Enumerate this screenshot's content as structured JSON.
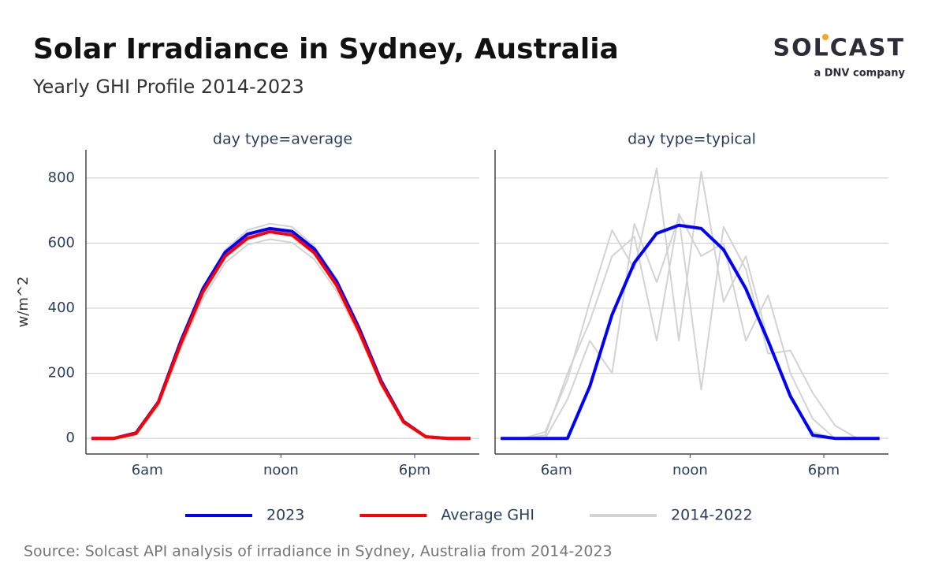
{
  "title": "Solar Irradiance in Sydney, Australia",
  "subtitle": "Yearly GHI Profile 2014-2023",
  "logo": {
    "name": "SOLCAST",
    "tagline": "a DNV company"
  },
  "source": "Source: Solcast API analysis of irradiance in Sydney, Australia from 2014-2023",
  "chart_data": [
    {
      "type": "line",
      "title": "day type=average",
      "y_label": "w/m^2",
      "x": [
        3.5,
        4.5,
        5.5,
        6.5,
        7.5,
        8.5,
        9.5,
        10.5,
        11.5,
        12.5,
        13.5,
        14.5,
        15.5,
        16.5,
        17.5,
        18.5,
        19.5,
        20.5
      ],
      "xlim": [
        3.25,
        20.9
      ],
      "xticks": [
        {
          "value": 6,
          "label": "6am"
        },
        {
          "value": 12,
          "label": "noon"
        },
        {
          "value": 18,
          "label": "6pm"
        }
      ],
      "ylim": [
        -48,
        887
      ],
      "yticks": [
        0,
        200,
        400,
        600,
        800
      ],
      "grid": true,
      "series": [
        {
          "name": "2014-2022",
          "color": "#d3d3d3",
          "width": 2,
          "lines": [
            [
              0,
              0,
              18,
              115,
              300,
              465,
              580,
              640,
              660,
              650,
              590,
              490,
              345,
              180,
              55,
              6,
              0,
              0
            ],
            [
              0,
              0,
              12,
              100,
              275,
              430,
              540,
              595,
              612,
              602,
              550,
              452,
              318,
              162,
              46,
              4,
              0,
              0
            ],
            [
              0,
              0,
              16,
              108,
              288,
              448,
              562,
              622,
              645,
              636,
              578,
              480,
              338,
              175,
              52,
              5,
              0,
              0
            ]
          ]
        },
        {
          "name": "2023",
          "color": "#0000ff",
          "width": 4,
          "values": [
            0,
            0,
            17,
            112,
            298,
            460,
            572,
            628,
            645,
            636,
            582,
            482,
            340,
            176,
            52,
            5,
            0,
            0
          ]
        },
        {
          "name": "Average GHI",
          "color": "#ff0000",
          "width": 4,
          "values": [
            0,
            0,
            15,
            110,
            290,
            450,
            560,
            615,
            635,
            625,
            570,
            470,
            330,
            170,
            50,
            5,
            0,
            0
          ]
        }
      ]
    },
    {
      "type": "line",
      "title": "day type=typical",
      "x": [
        3.5,
        4.5,
        5.5,
        6.5,
        7.5,
        8.5,
        9.5,
        10.5,
        11.5,
        12.5,
        13.5,
        14.5,
        15.5,
        16.5,
        17.5,
        18.5,
        19.5,
        20.5
      ],
      "xlim": [
        3.25,
        20.9
      ],
      "xticks": [
        {
          "value": 6,
          "label": "6am"
        },
        {
          "value": 12,
          "label": "noon"
        },
        {
          "value": 18,
          "label": "6pm"
        }
      ],
      "ylim": [
        -48,
        887
      ],
      "yticks": [
        0,
        200,
        400,
        600,
        800
      ],
      "grid": true,
      "series": [
        {
          "name": "2014-2022",
          "color": "#d3d3d3",
          "width": 2,
          "lines": [
            [
              0,
              0,
              20,
              180,
              420,
              640,
              520,
              830,
              300,
              820,
              420,
              560,
              300,
              120,
              20,
              0,
              0,
              0
            ],
            [
              0,
              0,
              0,
              120,
              300,
              200,
              660,
              480,
              680,
              150,
              650,
              520,
              260,
              270,
              140,
              40,
              0,
              0
            ],
            [
              0,
              0,
              10,
              200,
              360,
              560,
              620,
              300,
              690,
              560,
              600,
              300,
              440,
              200,
              60,
              0,
              0,
              0
            ]
          ]
        },
        {
          "name": "2023",
          "color": "#0000ff",
          "width": 4,
          "values": [
            0,
            0,
            0,
            0,
            160,
            380,
            540,
            630,
            655,
            645,
            580,
            460,
            300,
            130,
            10,
            0,
            0,
            0
          ]
        }
      ]
    }
  ]
}
